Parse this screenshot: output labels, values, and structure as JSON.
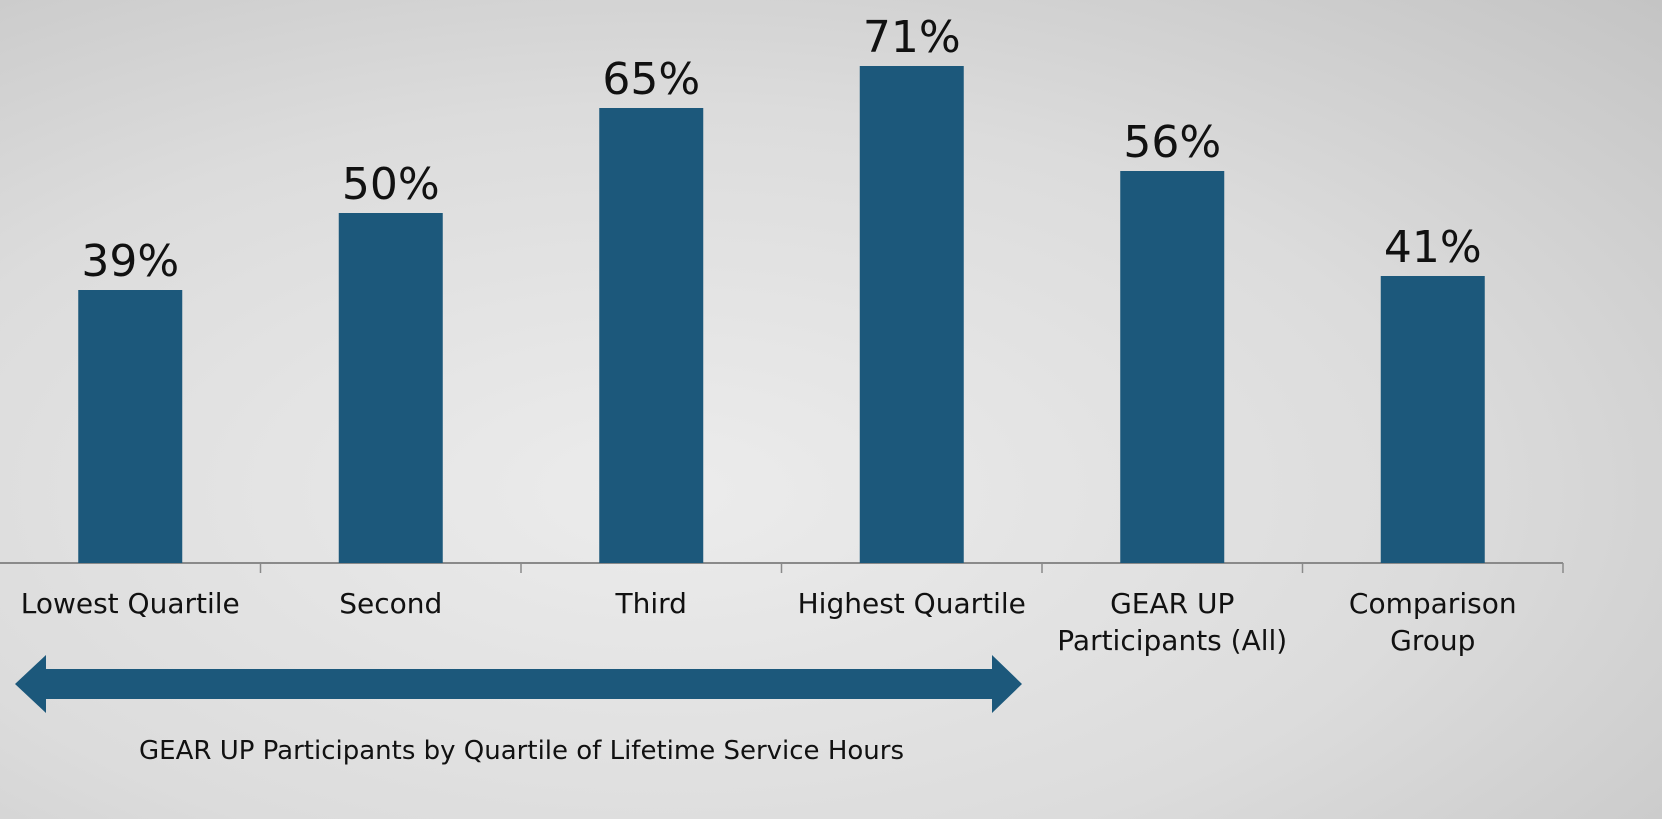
{
  "chart_data": {
    "type": "bar",
    "categories": [
      "Lowest Quartile",
      "Second",
      "Third",
      "Highest Quartile",
      "GEAR UP\nParticipants (All)",
      "Comparison\nGroup"
    ],
    "values": [
      39,
      50,
      65,
      71,
      56,
      41
    ],
    "value_labels": [
      "39%",
      "50%",
      "65%",
      "71%",
      "56%",
      "41%"
    ],
    "color": "#1c587b",
    "annotation": "GEAR UP Participants by Quartile of Lifetime Service Hours"
  }
}
